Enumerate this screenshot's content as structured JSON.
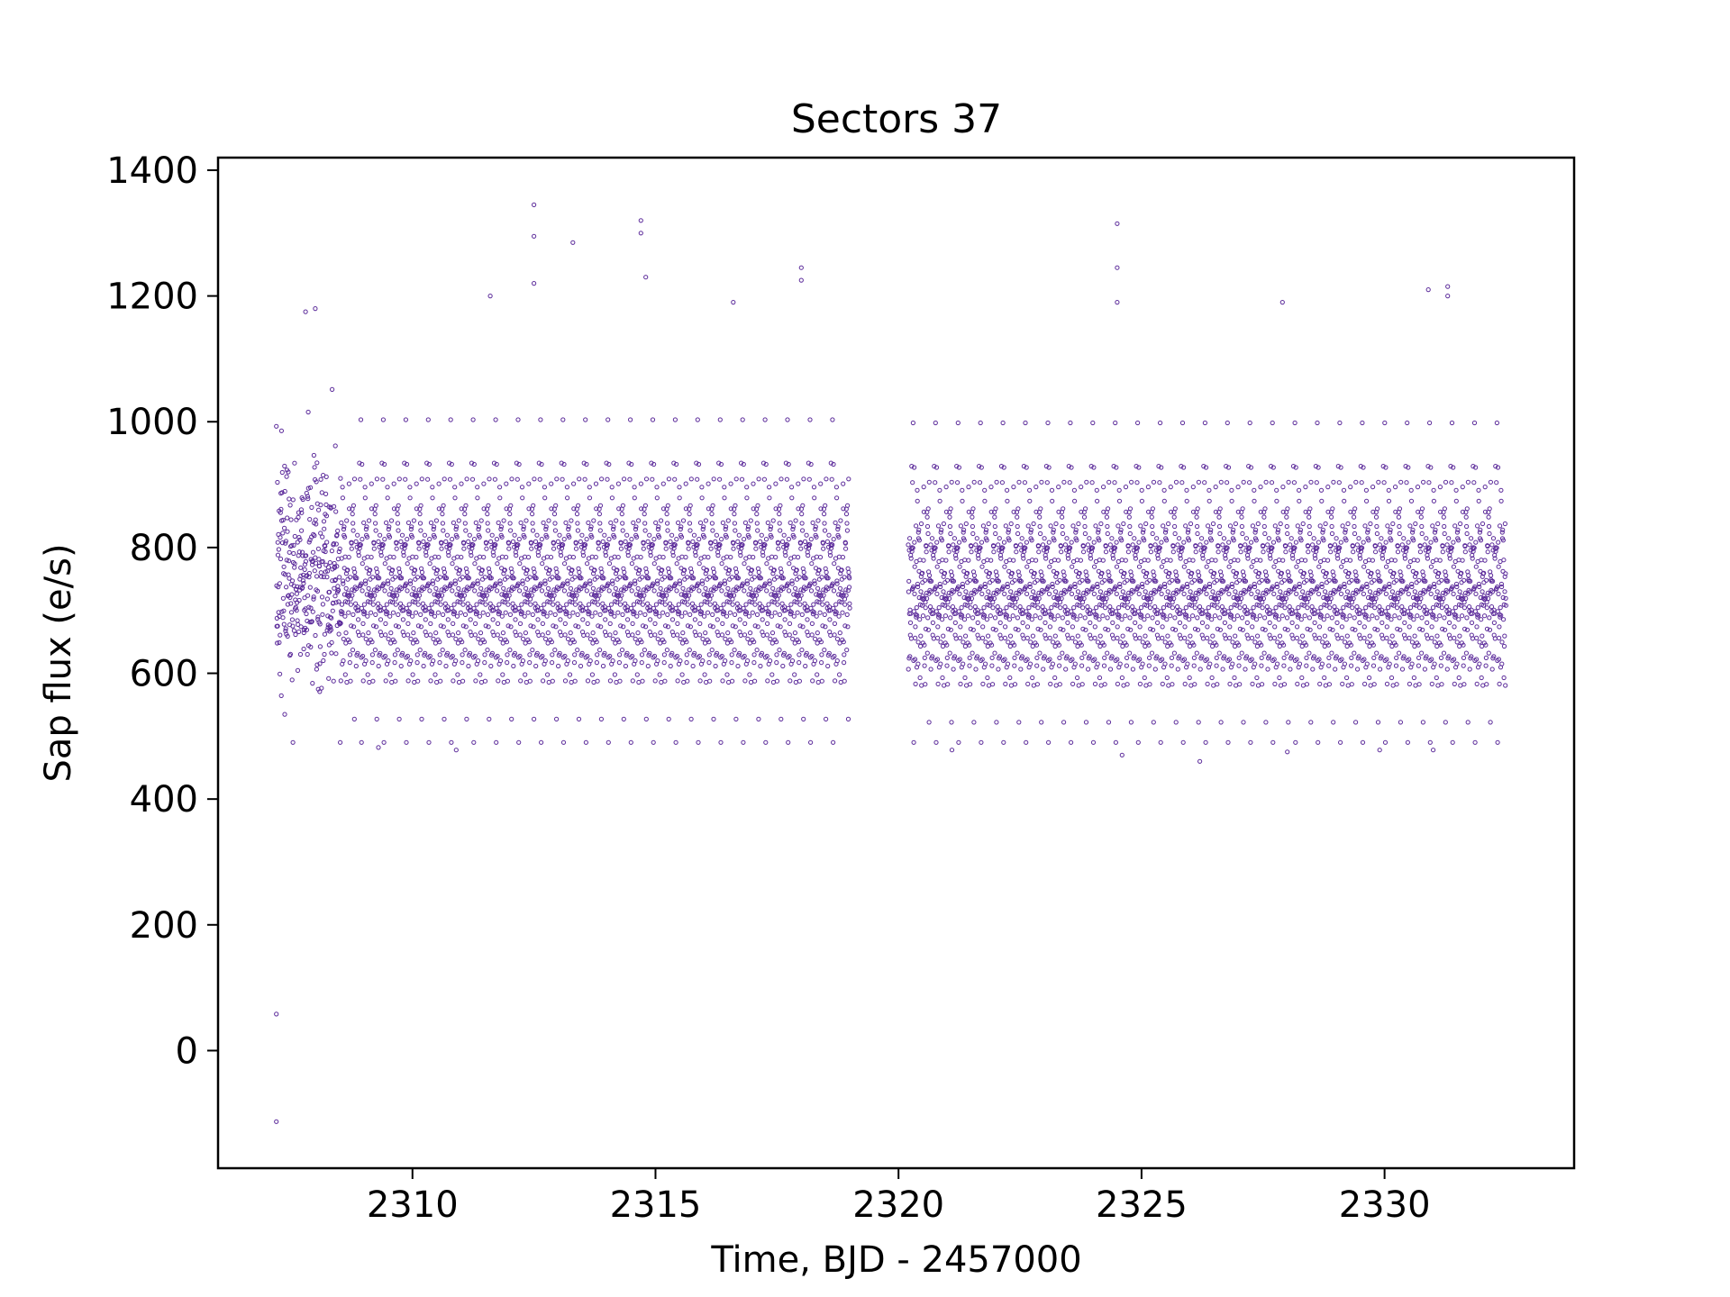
{
  "chart_data": {
    "type": "scatter",
    "title": "Sectors 37",
    "xlabel": "Time, BJD - 2457000",
    "ylabel": "Sap flux (e/s)",
    "xlim": [
      2306.0,
      2333.9
    ],
    "ylim": [
      -187,
      1420
    ],
    "xticks": [
      2310,
      2315,
      2320,
      2325,
      2330
    ],
    "yticks": [
      0,
      200,
      400,
      600,
      800,
      1000,
      1200,
      1400
    ],
    "grid": false,
    "legend": "none",
    "marker_color": "#5b2a9a",
    "marker": "open-circle",
    "segments": [
      {
        "t_start": 2307.2,
        "t_end": 2319.0,
        "flux_center": 750,
        "flux_scatter": 95
      },
      {
        "t_start": 2320.2,
        "t_end": 2332.5,
        "flux_center": 745,
        "flux_scatter": 95
      }
    ],
    "outliers": [
      {
        "x": 2307.2,
        "y": 58
      },
      {
        "x": 2307.2,
        "y": -113
      },
      {
        "x": 2312.5,
        "y": 1345
      },
      {
        "x": 2312.5,
        "y": 1295
      },
      {
        "x": 2312.5,
        "y": 1220
      },
      {
        "x": 2313.3,
        "y": 1285
      },
      {
        "x": 2314.7,
        "y": 1320
      },
      {
        "x": 2314.7,
        "y": 1300
      },
      {
        "x": 2314.8,
        "y": 1230
      },
      {
        "x": 2324.5,
        "y": 1315
      },
      {
        "x": 2324.5,
        "y": 1245
      },
      {
        "x": 2324.5,
        "y": 1190
      },
      {
        "x": 2318.0,
        "y": 1245
      },
      {
        "x": 2318.0,
        "y": 1225
      },
      {
        "x": 2331.3,
        "y": 1215
      },
      {
        "x": 2331.3,
        "y": 1200
      },
      {
        "x": 2330.9,
        "y": 1210
      },
      {
        "x": 2308.0,
        "y": 1180
      },
      {
        "x": 2307.8,
        "y": 1175
      },
      {
        "x": 2311.6,
        "y": 1200
      },
      {
        "x": 2327.9,
        "y": 1190
      },
      {
        "x": 2316.6,
        "y": 1190
      },
      {
        "x": 2326.2,
        "y": 460
      },
      {
        "x": 2324.6,
        "y": 470
      },
      {
        "x": 2321.1,
        "y": 478
      },
      {
        "x": 2310.9,
        "y": 478
      },
      {
        "x": 2309.3,
        "y": 482
      },
      {
        "x": 2328.0,
        "y": 475
      },
      {
        "x": 2331.0,
        "y": 478
      },
      {
        "x": 2329.9,
        "y": 478
      }
    ]
  }
}
